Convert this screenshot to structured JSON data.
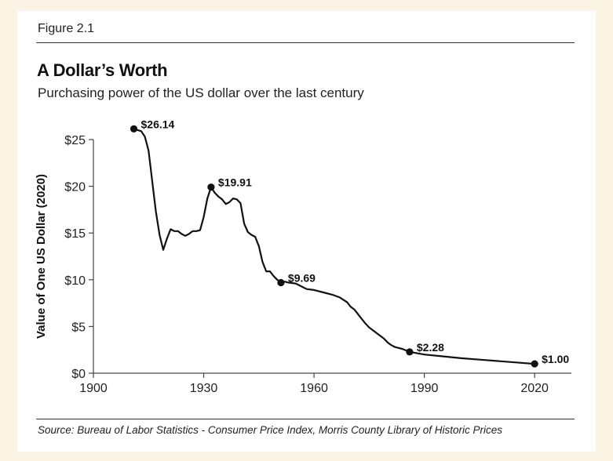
{
  "header": {
    "figure_label": "Figure 2.1",
    "title": "A Dollar’s Worth",
    "subtitle": "Purchasing power of the US dollar over the last century"
  },
  "footer": {
    "source": "Source: Bureau of Labor Statistics - Consumer Price Index, Morris County Library of Historic Prices"
  },
  "colors": {
    "background": "#fbf4e4",
    "card": "#ffffff",
    "line": "#111111"
  },
  "chart_data": {
    "type": "line",
    "title": "A Dollar’s Worth",
    "subtitle": "Purchasing power of the US dollar over the last century",
    "xlabel": "",
    "ylabel": "Value of One US Dollar (2020)",
    "xlim": [
      1900,
      2030
    ],
    "ylim": [
      0,
      25
    ],
    "x_ticks": [
      1900,
      1930,
      1960,
      1990,
      2020
    ],
    "x_tick_labels": [
      "1900",
      "1930",
      "1960",
      "1990",
      "2020"
    ],
    "y_ticks": [
      0,
      5,
      10,
      15,
      20,
      25
    ],
    "y_tick_labels": [
      "$0",
      "$5",
      "$10",
      "$15",
      "$20",
      "$25"
    ],
    "grid": false,
    "series": [
      {
        "name": "Value of One US Dollar (2020)",
        "x": [
          1911,
          1913,
          1914,
          1915,
          1916,
          1917,
          1918,
          1919,
          1920,
          1921,
          1922,
          1923,
          1924,
          1925,
          1926,
          1927,
          1928,
          1929,
          1930,
          1931,
          1932,
          1933,
          1934,
          1935,
          1936,
          1937,
          1938,
          1939,
          1940,
          1941,
          1942,
          1943,
          1944,
          1945,
          1946,
          1947,
          1948,
          1949,
          1950,
          1951,
          1952,
          1953,
          1955,
          1958,
          1960,
          1963,
          1965,
          1967,
          1969,
          1970,
          1971,
          1972,
          1973,
          1974,
          1975,
          1977,
          1978,
          1979,
          1980,
          1981,
          1982,
          1983,
          1984,
          1986,
          1990,
          1995,
          2000,
          2005,
          2010,
          2015,
          2020
        ],
        "values": [
          26.14,
          25.9,
          25.3,
          23.8,
          20.5,
          17.3,
          14.8,
          13.2,
          14.4,
          15.4,
          15.2,
          15.2,
          14.9,
          14.7,
          14.9,
          15.2,
          15.2,
          15.3,
          16.7,
          18.7,
          19.91,
          19.3,
          18.9,
          18.6,
          18.1,
          18.3,
          18.7,
          18.6,
          18.2,
          16.0,
          15.1,
          14.8,
          14.6,
          13.6,
          11.9,
          10.9,
          10.9,
          10.4,
          10.0,
          9.69,
          9.8,
          9.7,
          9.6,
          9.0,
          8.9,
          8.6,
          8.4,
          8.1,
          7.6,
          7.1,
          6.8,
          6.3,
          5.8,
          5.3,
          4.9,
          4.3,
          4.0,
          3.7,
          3.3,
          3.0,
          2.8,
          2.7,
          2.6,
          2.28,
          2.0,
          1.8,
          1.6,
          1.45,
          1.3,
          1.15,
          1.0
        ]
      }
    ],
    "annotations": [
      {
        "x": 1911,
        "y": 26.14,
        "label": "$26.14"
      },
      {
        "x": 1932,
        "y": 19.91,
        "label": "$19.91"
      },
      {
        "x": 1951,
        "y": 9.69,
        "label": "$9.69"
      },
      {
        "x": 1986,
        "y": 2.28,
        "label": "$2.28"
      },
      {
        "x": 2020,
        "y": 1.0,
        "label": "$1.00"
      }
    ]
  }
}
